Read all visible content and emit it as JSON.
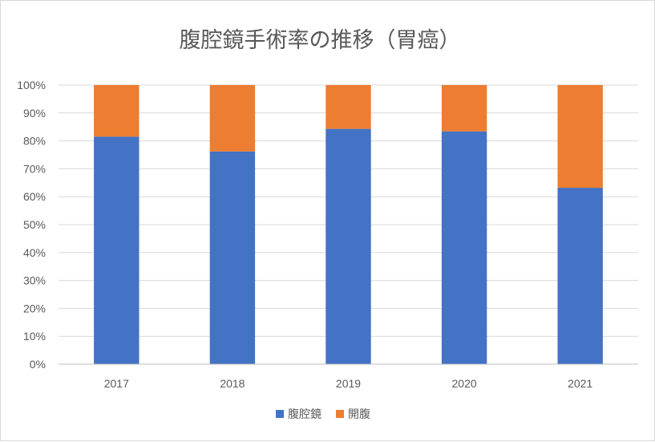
{
  "chart_data": {
    "type": "bar",
    "stacked": true,
    "title": "腹腔鏡手術率の推移（胃癌）",
    "xlabel": "",
    "ylabel": "",
    "categories": [
      "2017",
      "2018",
      "2019",
      "2020",
      "2021"
    ],
    "series": [
      {
        "name": "腹腔鏡",
        "color": "#4472c4",
        "values": [
          81.5,
          76.2,
          84.3,
          83.4,
          63.2
        ]
      },
      {
        "name": "開腹",
        "color": "#ed7d31",
        "values": [
          18.5,
          23.8,
          15.7,
          16.6,
          36.8
        ]
      }
    ],
    "ylim": [
      0,
      100
    ],
    "y_ticks": [
      "0%",
      "10%",
      "20%",
      "30%",
      "40%",
      "50%",
      "60%",
      "70%",
      "80%",
      "90%",
      "100%"
    ],
    "grid": true,
    "legend_position": "bottom"
  }
}
